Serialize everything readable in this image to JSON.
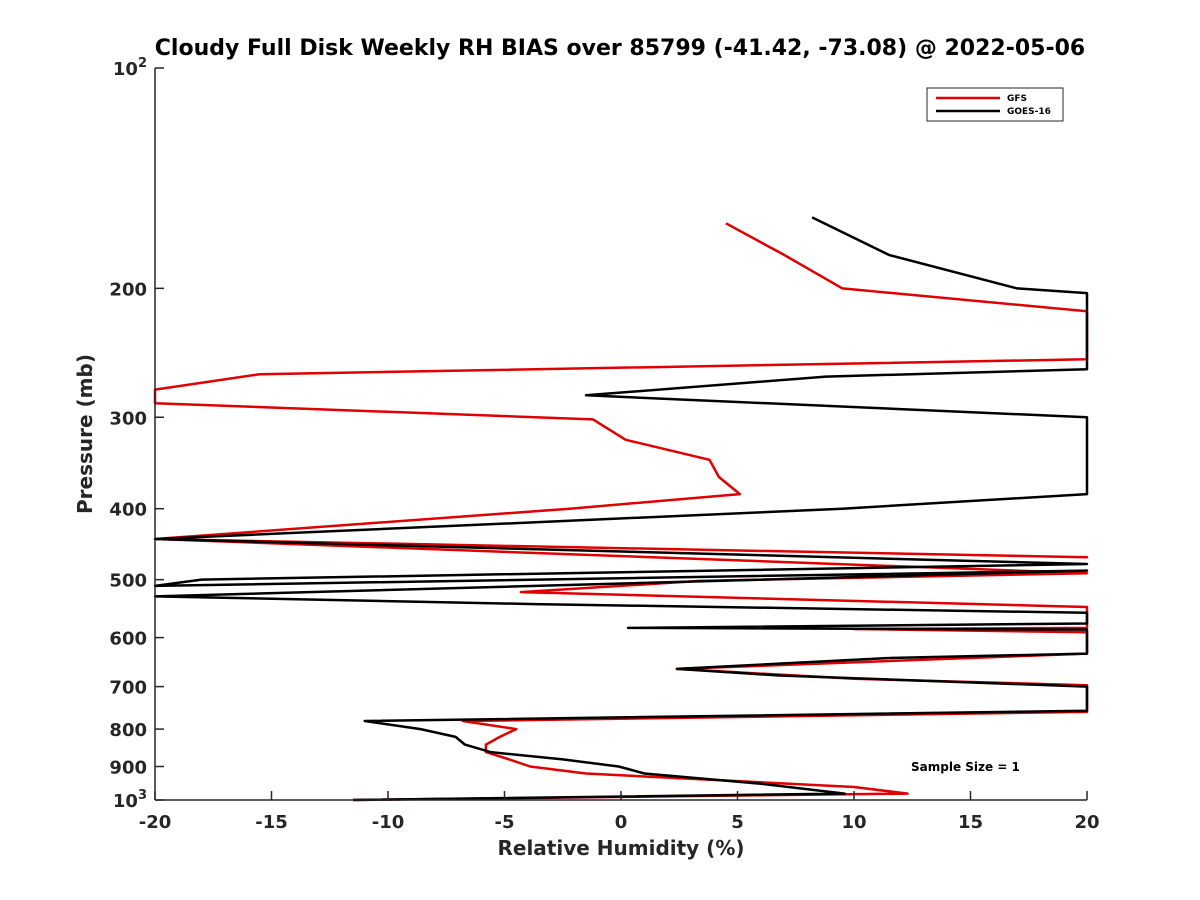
{
  "chart_data": {
    "type": "line",
    "title": "Cloudy Full Disk Weekly RH BIAS over 85799 (-41.42, -73.08) @ 2022-05-06",
    "xlabel": "Relative Humidity (%)",
    "ylabel": "Pressure (mb)",
    "xlim": [
      -20,
      20
    ],
    "ylim": [
      100,
      1000
    ],
    "y_scale": "log",
    "y_reversed": true,
    "x_ticks": [
      "-20",
      "-15",
      "-10",
      "-5",
      "0",
      "5",
      "10",
      "15",
      "20"
    ],
    "y_ticks": [
      {
        "value": 100,
        "label": "10",
        "sup": "2"
      },
      {
        "value": 200,
        "label": "200",
        "sup": ""
      },
      {
        "value": 300,
        "label": "300",
        "sup": ""
      },
      {
        "value": 400,
        "label": "400",
        "sup": ""
      },
      {
        "value": 500,
        "label": "500",
        "sup": ""
      },
      {
        "value": 600,
        "label": "600",
        "sup": ""
      },
      {
        "value": 700,
        "label": "700",
        "sup": ""
      },
      {
        "value": 800,
        "label": "800",
        "sup": ""
      },
      {
        "value": 900,
        "label": "900",
        "sup": ""
      },
      {
        "value": 1000,
        "label": "10",
        "sup": "3"
      }
    ],
    "grid": false,
    "legend_position": "top-right",
    "annotation": "Sample Size = 1",
    "series": [
      {
        "name": "GFS",
        "color": "#e00000",
        "points": [
          [
            4.5,
            163
          ],
          [
            7.0,
            180
          ],
          [
            9.5,
            200
          ],
          [
            20,
            215
          ],
          [
            20,
            250
          ],
          [
            -15.5,
            262
          ],
          [
            -20,
            275
          ],
          [
            -20,
            287
          ],
          [
            -1.2,
            302
          ],
          [
            0.2,
            322
          ],
          [
            3.8,
            343
          ],
          [
            4.2,
            362
          ],
          [
            5.1,
            382
          ],
          [
            -2.2,
            400
          ],
          [
            -20,
            440
          ],
          [
            20,
            466
          ],
          [
            -20,
            440
          ],
          [
            20,
            490
          ],
          [
            3.4,
            502
          ],
          [
            -4.3,
            520
          ],
          [
            20,
            545
          ],
          [
            20,
            582
          ],
          [
            10,
            584
          ],
          [
            20,
            590
          ],
          [
            20,
            631
          ],
          [
            2.4,
            662
          ],
          [
            10,
            683
          ],
          [
            20,
            697
          ],
          [
            20,
            758
          ],
          [
            -6.8,
            780
          ],
          [
            -4.5,
            800
          ],
          [
            -5.2,
            820
          ],
          [
            -5.8,
            840
          ],
          [
            -5.8,
            860
          ],
          [
            -4.8,
            880
          ],
          [
            -3.9,
            900
          ],
          [
            -1.5,
            920
          ],
          [
            10.0,
            960
          ],
          [
            12.3,
            980
          ],
          [
            -11.5,
            1000
          ]
        ]
      },
      {
        "name": "GOES-16",
        "color": "#000000",
        "points": [
          [
            8.2,
            160
          ],
          [
            11.5,
            180
          ],
          [
            17.0,
            200
          ],
          [
            20,
            203
          ],
          [
            20,
            258
          ],
          [
            8.8,
            264
          ],
          [
            -1.5,
            280
          ],
          [
            20,
            300
          ],
          [
            20,
            382
          ],
          [
            9.5,
            400
          ],
          [
            -20,
            440
          ],
          [
            20,
            476
          ],
          [
            -18,
            500
          ],
          [
            -20,
            510
          ],
          [
            20,
            486
          ],
          [
            -20,
            527
          ],
          [
            -3.7,
            540
          ],
          [
            20,
            555
          ],
          [
            20,
            574
          ],
          [
            0.3,
            582
          ],
          [
            20,
            585
          ],
          [
            20,
            631
          ],
          [
            11.4,
            640
          ],
          [
            2.4,
            662
          ],
          [
            6.8,
            676
          ],
          [
            20,
            700
          ],
          [
            20,
            755
          ],
          [
            -11.0,
            780
          ],
          [
            -8.6,
            800
          ],
          [
            -7.1,
            820
          ],
          [
            -6.7,
            840
          ],
          [
            -5.6,
            860
          ],
          [
            -2.5,
            880
          ],
          [
            -0.1,
            900
          ],
          [
            1.0,
            920
          ],
          [
            6.0,
            950
          ],
          [
            9.6,
            980
          ],
          [
            -11.5,
            1000
          ]
        ]
      }
    ]
  }
}
